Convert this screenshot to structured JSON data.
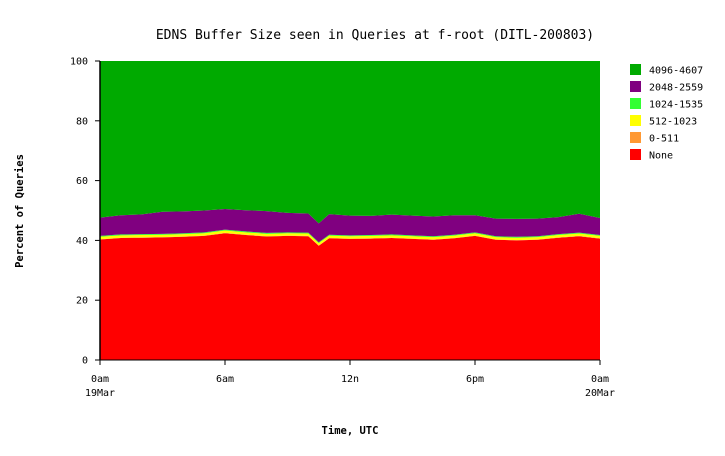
{
  "chart_data": {
    "type": "area",
    "stacked": true,
    "percent": true,
    "title": "EDNS Buffer Size seen in Queries at f-root (DITL-200803)",
    "xlabel": "Time, UTC",
    "ylabel": "Percent of Queries",
    "ylim": [
      0,
      100
    ],
    "xlim": [
      0,
      24
    ],
    "y_ticks": [
      0,
      20,
      40,
      60,
      80,
      100
    ],
    "x_ticks": [
      {
        "value": 0,
        "label": "0am",
        "sublabel": "19Mar"
      },
      {
        "value": 6,
        "label": "6am",
        "sublabel": ""
      },
      {
        "value": 12,
        "label": "12n",
        "sublabel": ""
      },
      {
        "value": 18,
        "label": "6pm",
        "sublabel": ""
      },
      {
        "value": 24,
        "label": "0am",
        "sublabel": "20Mar"
      }
    ],
    "grid": false,
    "legend_position": "right",
    "x": [
      0,
      1,
      2,
      3,
      4,
      5,
      6,
      7,
      8,
      9,
      10,
      10.5,
      11,
      12,
      13,
      14,
      15,
      16,
      17,
      18,
      19,
      20,
      21,
      22,
      23,
      24
    ],
    "series": [
      {
        "name": "None",
        "color": "#ff0000",
        "values": [
          40.3,
          40.8,
          40.9,
          41.0,
          41.2,
          41.5,
          42.4,
          41.8,
          41.3,
          41.5,
          41.4,
          38.2,
          40.7,
          40.5,
          40.6,
          40.8,
          40.5,
          40.2,
          40.7,
          41.5,
          40.2,
          40.0,
          40.2,
          40.9,
          41.4,
          40.6
        ]
      },
      {
        "name": "0-511",
        "color": "#ff9933",
        "values": [
          0.1,
          0.1,
          0.1,
          0.1,
          0.1,
          0.1,
          0.1,
          0.1,
          0.1,
          0.1,
          0.1,
          0.1,
          0.1,
          0.1,
          0.1,
          0.1,
          0.1,
          0.1,
          0.1,
          0.1,
          0.1,
          0.1,
          0.1,
          0.1,
          0.1,
          0.1
        ]
      },
      {
        "name": "512-1023",
        "color": "#ffff00",
        "values": [
          0.8,
          0.8,
          0.8,
          0.8,
          0.8,
          0.8,
          0.8,
          0.8,
          0.8,
          0.8,
          0.8,
          0.8,
          0.8,
          0.8,
          0.8,
          0.8,
          0.8,
          0.8,
          0.8,
          0.8,
          0.8,
          0.8,
          0.8,
          0.8,
          0.8,
          0.8
        ]
      },
      {
        "name": "1024-1535",
        "color": "#33ff33",
        "values": [
          0.3,
          0.3,
          0.3,
          0.3,
          0.3,
          0.3,
          0.3,
          0.3,
          0.3,
          0.3,
          0.3,
          0.3,
          0.3,
          0.3,
          0.3,
          0.3,
          0.3,
          0.3,
          0.3,
          0.3,
          0.3,
          0.3,
          0.3,
          0.3,
          0.3,
          0.3
        ]
      },
      {
        "name": "2048-2559",
        "color": "#800080",
        "values": [
          6.1,
          6.4,
          6.6,
          7.4,
          7.3,
          7.3,
          6.9,
          7.1,
          7.3,
          6.5,
          6.4,
          6.3,
          6.9,
          6.6,
          6.4,
          6.6,
          6.6,
          6.6,
          6.5,
          5.7,
          5.9,
          6.0,
          5.9,
          5.7,
          6.3,
          5.7
        ]
      },
      {
        "name": "4096-4607",
        "color": "#00aa00",
        "values": [
          52.4,
          51.6,
          51.3,
          50.4,
          50.3,
          50.0,
          49.5,
          49.9,
          50.2,
          50.8,
          51.0,
          54.3,
          51.2,
          51.7,
          51.8,
          51.4,
          51.7,
          52.0,
          51.6,
          51.6,
          52.7,
          52.8,
          52.7,
          52.2,
          51.1,
          52.5
        ]
      }
    ],
    "legend_order": [
      "4096-4607",
      "2048-2559",
      "1024-1535",
      "512-1023",
      "0-511",
      "None"
    ]
  }
}
